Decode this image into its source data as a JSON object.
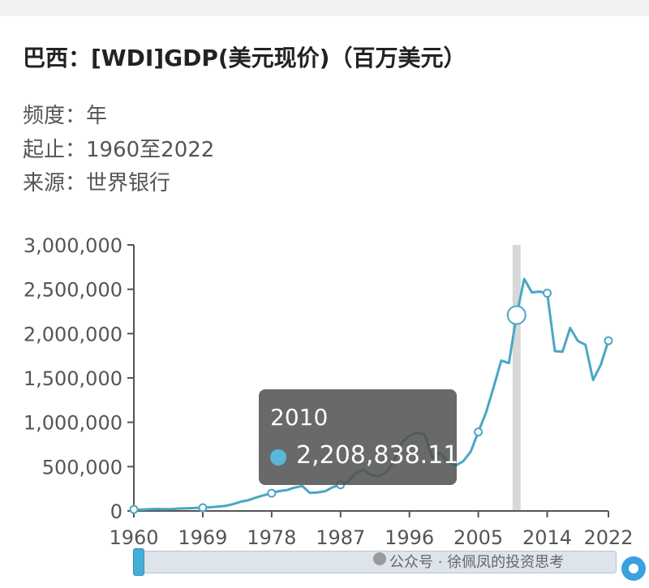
{
  "title": "巴西：[WDI]GDP(美元现价)（百万美元）",
  "meta": {
    "frequency_label": "频度：",
    "frequency_value": "年",
    "range_label": "起止：",
    "range_value": "1960至2022",
    "source_label": "来源：",
    "source_value": "世界银行"
  },
  "tooltip": {
    "year": "2010",
    "value": "2,208,838.11"
  },
  "watermark": "公众号 · 徐佩凤的投资思考",
  "colors": {
    "line": "#4aa6c6",
    "marker": "#4aa6c6",
    "axis": "#555555",
    "highlight_band": "#d8d8d8"
  },
  "chart_data": {
    "type": "line",
    "title": "巴西：[WDI]GDP(美元现价)（百万美元）",
    "xlabel": "",
    "ylabel": "",
    "xlim": [
      1960,
      2022
    ],
    "ylim": [
      0,
      3000000
    ],
    "x_ticks": [
      "1960",
      "1969",
      "1978",
      "1987",
      "1996",
      "2005",
      "2014",
      "2022"
    ],
    "y_ticks": [
      "0",
      "500,000",
      "1,000,000",
      "1,500,000",
      "2,000,000",
      "2,500,000",
      "3,000,000"
    ],
    "grid": false,
    "highlight_x": 2010,
    "marked_x": [
      1960,
      1969,
      1978,
      1987,
      2005,
      2014,
      2022
    ],
    "series": [
      {
        "x": [
          1960,
          1961,
          1962,
          1963,
          1964,
          1965,
          1966,
          1967,
          1968,
          1969,
          1970,
          1971,
          1972,
          1973,
          1974,
          1975,
          1976,
          1977,
          1978,
          1979,
          1980,
          1981,
          1982,
          1983,
          1984,
          1985,
          1986,
          1987,
          1988,
          1989,
          1990,
          1991,
          1992,
          1993,
          1994,
          1995,
          1996,
          1997,
          1998,
          1999,
          2000,
          2001,
          2002,
          2003,
          2004,
          2005,
          2006,
          2007,
          2008,
          2009,
          2010,
          2011,
          2012,
          2013,
          2014,
          2015,
          2016,
          2017,
          2018,
          2019,
          2020,
          2021,
          2022
        ],
        "y": [
          17000,
          15000,
          19000,
          23000,
          21000,
          22000,
          27000,
          30000,
          33000,
          37000,
          42000,
          49000,
          58000,
          79000,
          105000,
          123000,
          153000,
          177000,
          200000,
          224000,
          235000,
          263000,
          281000,
          203000,
          209000,
          223000,
          268000,
          295000,
          331000,
          426000,
          465000,
          407000,
          391000,
          438000,
          559000,
          769000,
          850000,
          883000,
          864000,
          599000,
          655000,
          559000,
          509000,
          558000,
          669000,
          891000,
          1107000,
          1397000,
          1696000,
          1667000,
          2208838,
          2616000,
          2465000,
          2473000,
          2456000,
          1802000,
          1796000,
          2063000,
          1917000,
          1873000,
          1476000,
          1649000,
          1920000
        ]
      }
    ]
  }
}
